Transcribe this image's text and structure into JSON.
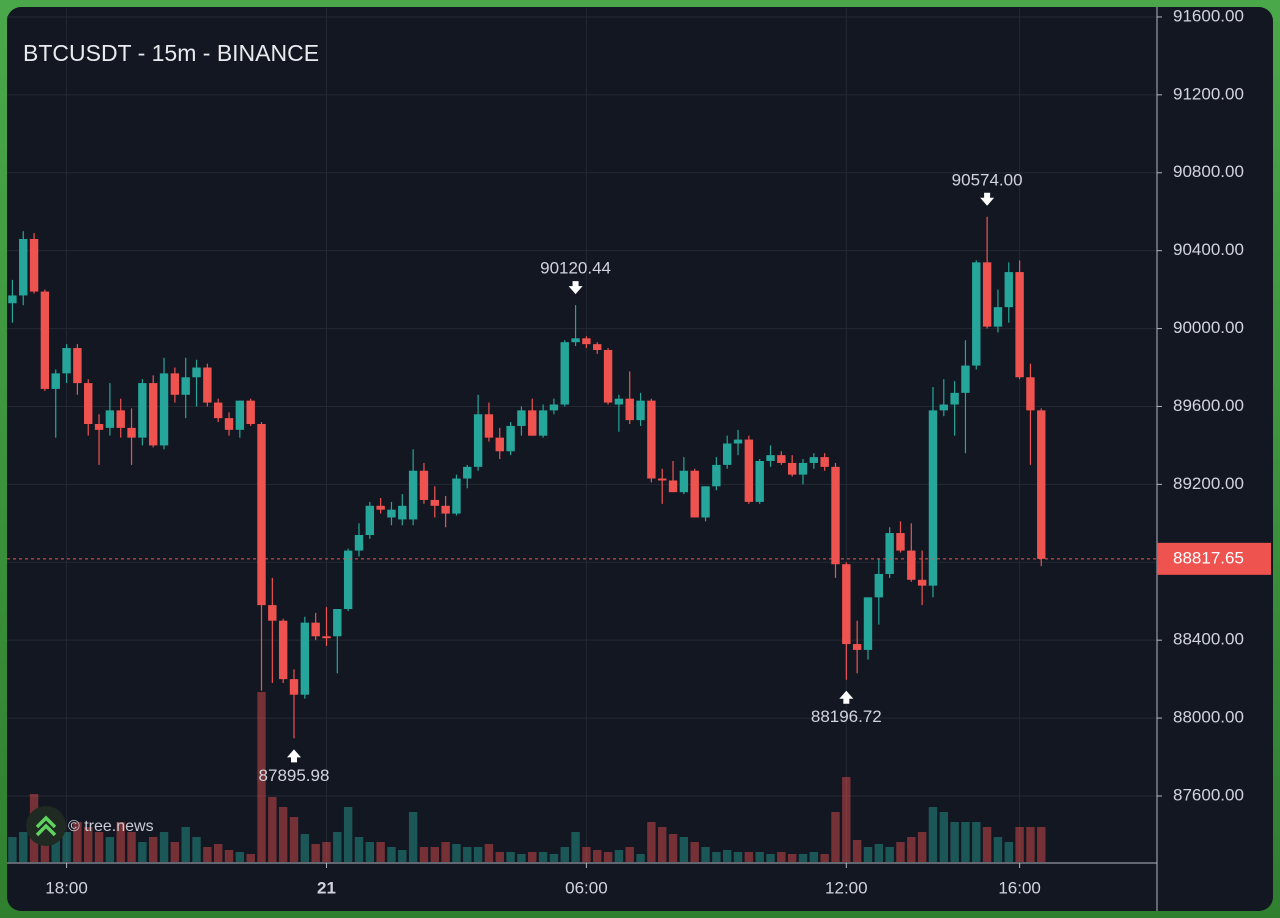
{
  "chart_data": {
    "type": "candlestick",
    "title": "BTCUSDT - 15m - BINANCE",
    "watermark": "© tree.news",
    "x": [
      "16:45",
      "17:00",
      "17:15",
      "17:30",
      "17:45",
      "18:00",
      "18:15",
      "18:30",
      "18:45",
      "19:00",
      "19:15",
      "19:30",
      "19:45",
      "20:00",
      "20:15",
      "20:30",
      "20:45",
      "21:00",
      "21:15",
      "21:30",
      "21:45",
      "22:00",
      "22:15",
      "22:30",
      "22:45",
      "23:00",
      "23:15",
      "23:30",
      "23:45",
      "00:00",
      "00:15",
      "00:30",
      "00:45",
      "01:00",
      "01:15",
      "01:30",
      "01:45",
      "02:00",
      "02:15",
      "02:30",
      "02:45",
      "03:00",
      "03:15",
      "03:30",
      "03:45",
      "04:00",
      "04:15",
      "04:30",
      "04:45",
      "05:00",
      "05:15",
      "05:30",
      "05:45",
      "06:00",
      "06:15",
      "06:30",
      "06:45",
      "07:00",
      "07:15",
      "07:30",
      "07:45",
      "08:00",
      "08:15",
      "08:30",
      "08:45",
      "09:00",
      "09:15",
      "09:30",
      "09:45",
      "10:00",
      "10:15",
      "10:30",
      "10:45",
      "11:00",
      "11:15",
      "11:30",
      "11:45",
      "12:00",
      "12:15",
      "12:30",
      "12:45",
      "13:00",
      "13:15",
      "13:30",
      "13:45",
      "14:00",
      "14:15",
      "14:30",
      "14:45",
      "15:00",
      "15:15",
      "15:30",
      "15:45",
      "16:00",
      "16:15",
      "16:30"
    ],
    "open": [
      90130,
      90170,
      90460,
      90190,
      89690,
      89770,
      89900,
      89720,
      89510,
      89490,
      89580,
      89490,
      89440,
      89720,
      89400,
      89770,
      89660,
      89750,
      89800,
      89620,
      89540,
      89480,
      89630,
      89510,
      88580,
      88500,
      88200,
      88120,
      88490,
      88420,
      88420,
      88560,
      88860,
      88940,
      89090,
      89030,
      89020,
      89020,
      89270,
      89120,
      89090,
      89050,
      89230,
      89290,
      89560,
      89440,
      89370,
      89500,
      89580,
      89450,
      89580,
      89610,
      89930,
      89950,
      89920,
      89890,
      89610,
      89640,
      89530,
      89630,
      89230,
      89220,
      89160,
      89270,
      89030,
      89190,
      89300,
      89410,
      89430,
      89110,
      89320,
      89350,
      89310,
      89250,
      89310,
      89340,
      89290,
      88790,
      88380,
      88350,
      88620,
      88740,
      88950,
      88860,
      88710,
      88680,
      89580,
      89610,
      89670,
      89810,
      90340,
      90010,
      90110,
      90290,
      89750,
      89580
    ],
    "high": [
      90250,
      90500,
      90490,
      90200,
      89790,
      89920,
      89920,
      89740,
      89560,
      89720,
      89640,
      89590,
      89740,
      89760,
      89850,
      89800,
      89850,
      89840,
      89820,
      89640,
      89570,
      89630,
      89640,
      89520,
      88720,
      88510,
      88250,
      88520,
      88540,
      88570,
      88560,
      88870,
      89000,
      89110,
      89130,
      89110,
      89150,
      89380,
      89310,
      89190,
      89140,
      89250,
      89300,
      89660,
      89620,
      89490,
      89520,
      89600,
      89640,
      89610,
      89640,
      89940,
      90120.44,
      89960,
      89930,
      89900,
      89660,
      89780,
      89670,
      89640,
      89280,
      89320,
      89340,
      89280,
      89190,
      89340,
      89450,
      89480,
      89450,
      89330,
      89400,
      89370,
      89350,
      89330,
      89360,
      89360,
      89310,
      88800,
      88500,
      88620,
      88820,
      88980,
      89010,
      89000,
      88860,
      89700,
      89740,
      89730,
      89940,
      90350,
      90574,
      90200,
      90340,
      90350,
      89820,
      89590
    ],
    "low": [
      90030,
      90120,
      90180,
      89680,
      89440,
      89720,
      89660,
      89450,
      89300,
      89450,
      89440,
      89300,
      89400,
      89390,
      89380,
      89620,
      89540,
      89600,
      89600,
      89520,
      89450,
      89440,
      89500,
      88140,
      88180,
      88180,
      87895.98,
      88100,
      88400,
      88370,
      88230,
      88550,
      88830,
      88920,
      89050,
      88990,
      88990,
      88990,
      89100,
      89030,
      88980,
      89040,
      89180,
      89270,
      89420,
      89330,
      89350,
      89450,
      89450,
      89440,
      89560,
      89600,
      89910,
      89900,
      89870,
      89610,
      89470,
      89510,
      89500,
      89210,
      89100,
      89160,
      89150,
      89030,
      89010,
      89170,
      89280,
      89350,
      89100,
      89100,
      89290,
      89300,
      89240,
      89200,
      89280,
      89270,
      88720,
      88196.72,
      88230,
      88300,
      88480,
      88720,
      88850,
      88700,
      88580,
      88620,
      89550,
      89450,
      89360,
      89790,
      90000,
      89980,
      90030,
      89740,
      89300,
      88780
    ],
    "close": [
      90170,
      90460,
      90190,
      89690,
      89770,
      89900,
      89720,
      89510,
      89480,
      89580,
      89490,
      89440,
      89720,
      89400,
      89770,
      89660,
      89750,
      89800,
      89620,
      89540,
      89480,
      89630,
      89510,
      88580,
      88500,
      88200,
      88120,
      88490,
      88420,
      88410,
      88560,
      88860,
      88940,
      89090,
      89070,
      89070,
      89090,
      89270,
      89120,
      89090,
      89050,
      89230,
      89290,
      89560,
      89440,
      89370,
      89500,
      89580,
      89450,
      89580,
      89610,
      89930,
      89950,
      89920,
      89890,
      89620,
      89640,
      89530,
      89630,
      89230,
      89220,
      89160,
      89270,
      89030,
      89190,
      89300,
      89410,
      89430,
      89110,
      89320,
      89350,
      89310,
      89250,
      89310,
      89340,
      89290,
      88790,
      88380,
      88350,
      88620,
      88740,
      88950,
      88860,
      88710,
      88680,
      89580,
      89610,
      89670,
      89810,
      90340,
      90010,
      90110,
      90290,
      89750,
      89580,
      88817.65
    ],
    "volume": [
      25,
      30,
      68,
      40,
      35,
      30,
      40,
      35,
      30,
      25,
      40,
      30,
      20,
      25,
      30,
      20,
      35,
      25,
      15,
      18,
      12,
      10,
      8,
      170,
      65,
      55,
      45,
      28,
      18,
      20,
      30,
      55,
      25,
      20,
      20,
      15,
      12,
      50,
      15,
      15,
      20,
      18,
      15,
      15,
      18,
      10,
      10,
      8,
      10,
      10,
      8,
      15,
      30,
      15,
      12,
      10,
      12,
      15,
      8,
      40,
      35,
      28,
      25,
      20,
      15,
      10,
      12,
      10,
      10,
      10,
      8,
      10,
      8,
      8,
      10,
      8,
      50,
      85,
      22,
      15,
      18,
      15,
      20,
      25,
      30,
      55,
      50,
      40,
      40,
      40,
      35,
      25,
      20,
      35,
      35,
      35
    ],
    "up_color": "#26a69a",
    "down_color": "#ef5350",
    "ylim": [
      87261,
      91646
    ],
    "yticks": [
      {
        "value": 87600,
        "label": "87600.00"
      },
      {
        "value": 88000,
        "label": "88000.00"
      },
      {
        "value": 88400,
        "label": "88400.00"
      },
      {
        "value": 88800,
        "label": "88800.00"
      },
      {
        "value": 89200,
        "label": "89200.00"
      },
      {
        "value": 89600,
        "label": "89600.00"
      },
      {
        "value": 90000,
        "label": "90000.00"
      },
      {
        "value": 90400,
        "label": "90400.00"
      },
      {
        "value": 90800,
        "label": "90800.00"
      },
      {
        "value": 91200,
        "label": "91200.00"
      },
      {
        "value": 91600,
        "label": "91600.00"
      }
    ],
    "xticks": [
      "18:00",
      {
        "value": "00:00",
        "label": "21"
      },
      "06:00",
      "12:00",
      "16:00"
    ],
    "grid": true,
    "annotations": [
      {
        "x": "23:15",
        "value": 87895.98,
        "label": "87895.98",
        "position": "below"
      },
      {
        "x": "05:45",
        "value": 90120.44,
        "label": "90120.44",
        "position": "above"
      },
      {
        "x": "12:00",
        "value": 88196.72,
        "label": "88196.72",
        "position": "below"
      },
      {
        "x": "15:15",
        "value": 90574,
        "label": "90574.00",
        "position": "above"
      }
    ]
  }
}
